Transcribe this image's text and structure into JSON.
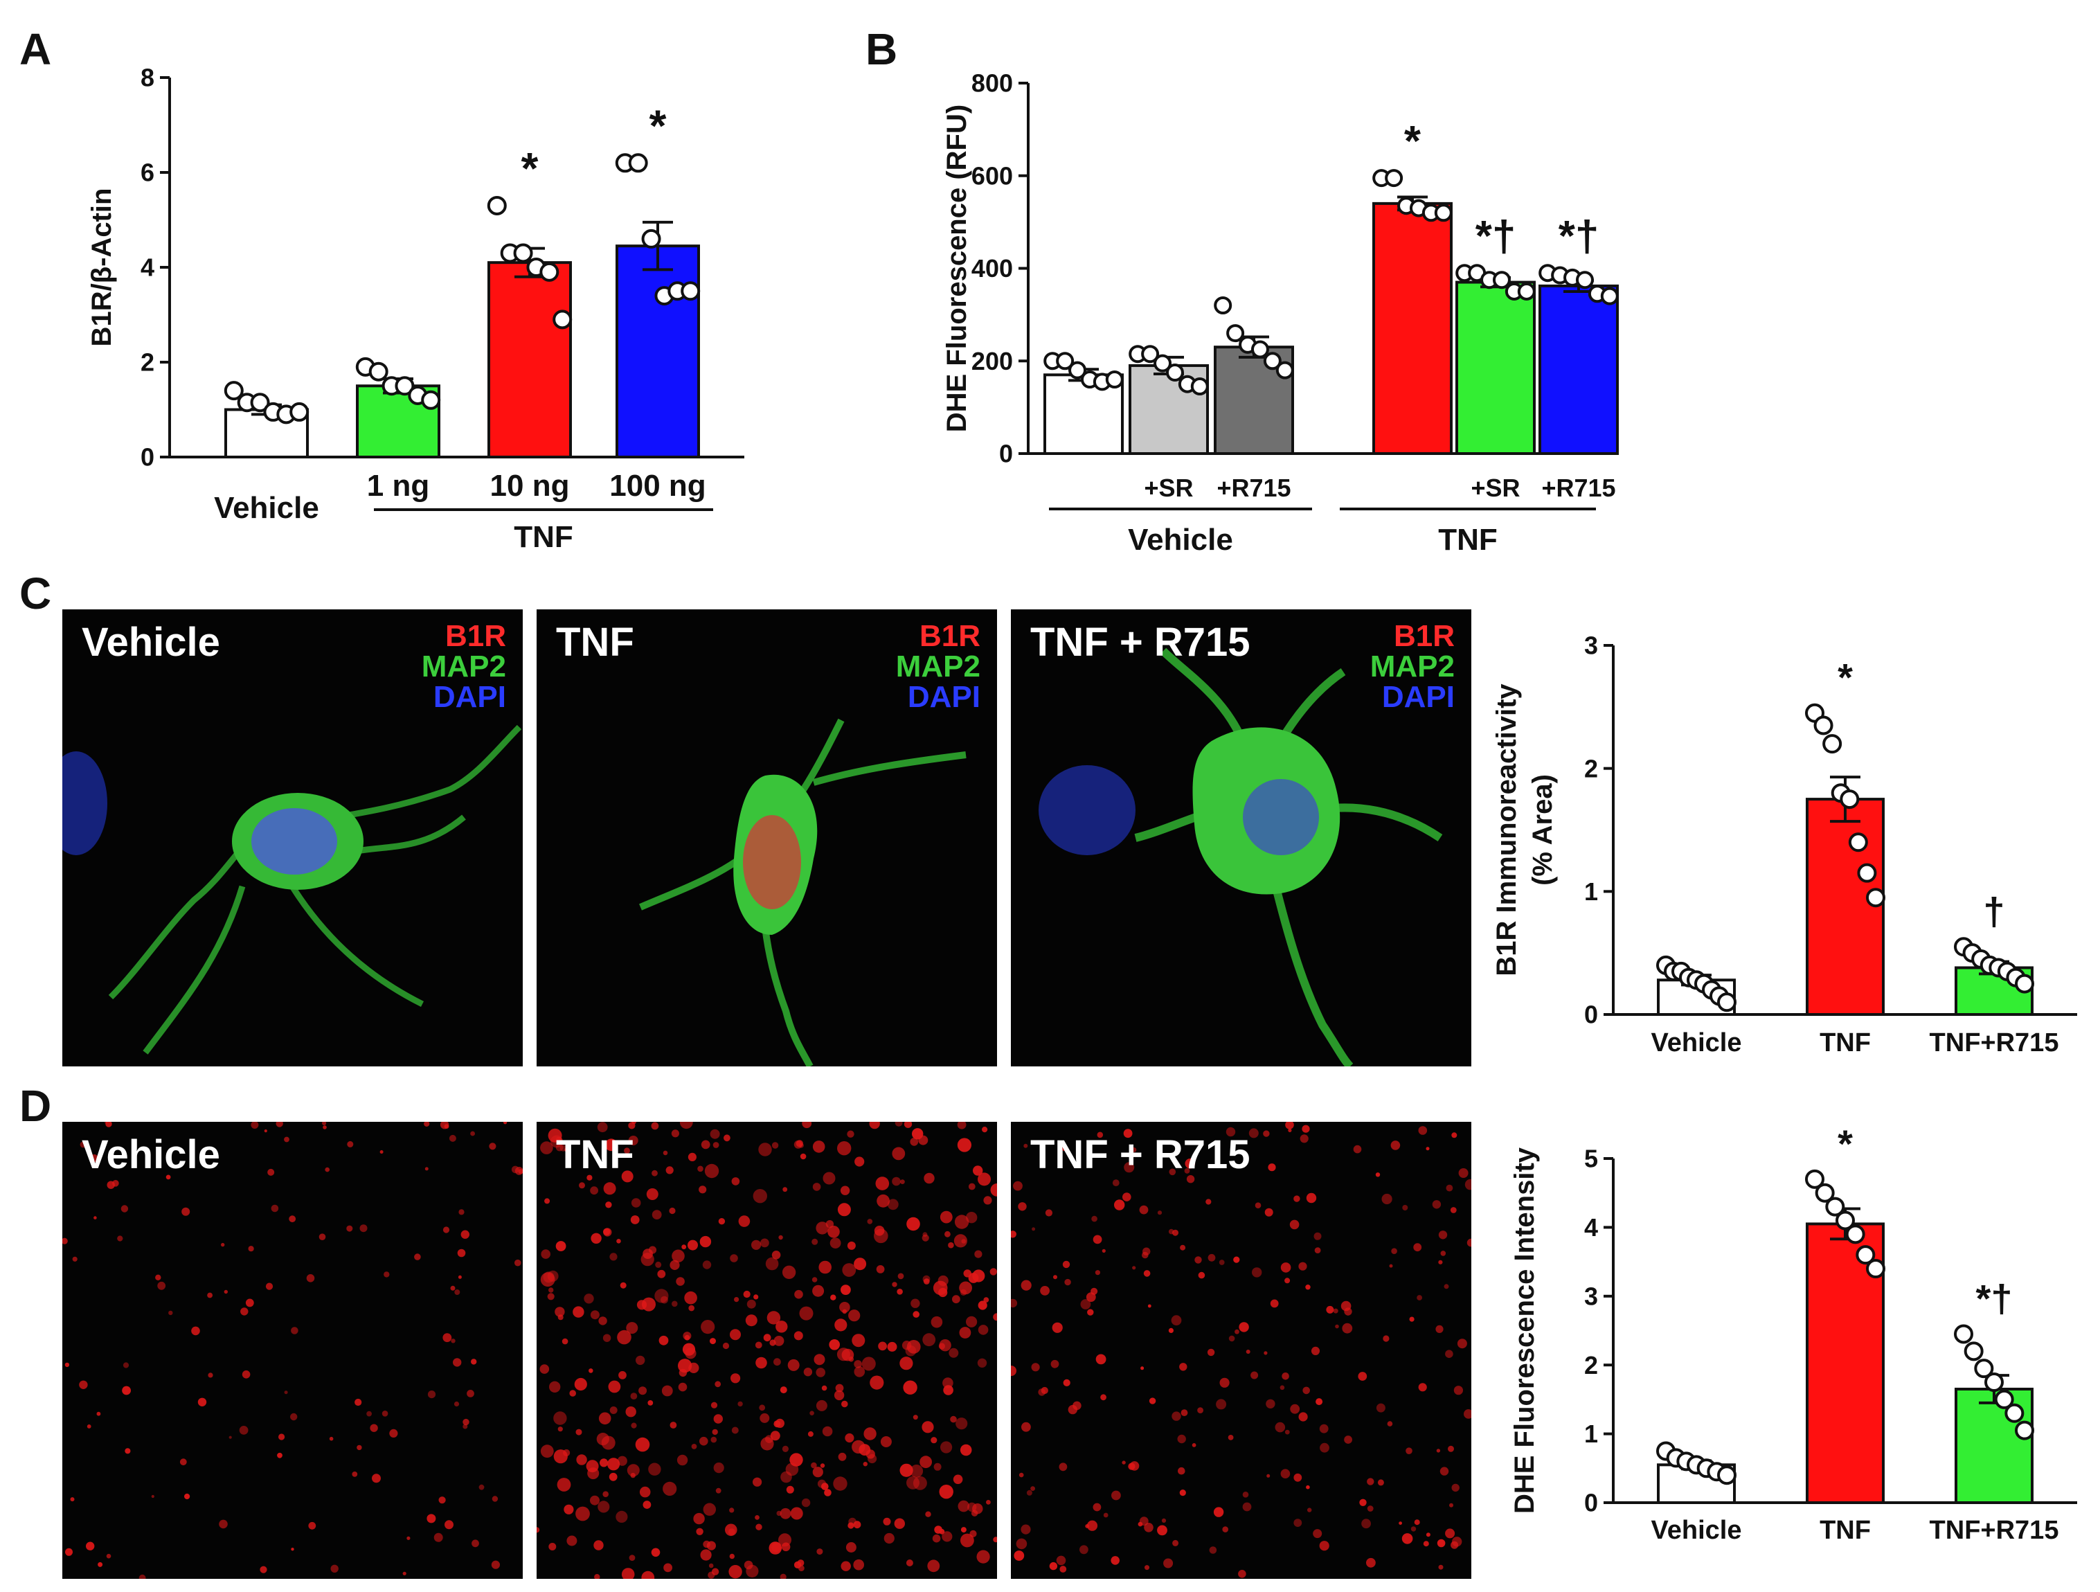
{
  "panels": {
    "A": {
      "letter": "A"
    },
    "B": {
      "letter": "B"
    },
    "C": {
      "letter": "C"
    },
    "D": {
      "letter": "D"
    }
  },
  "stain_labels": {
    "b1r": "B1R",
    "map2": "MAP2",
    "dapi": "DAPI"
  },
  "images": {
    "C": [
      "Vehicle",
      "TNF",
      "TNF + R715"
    ],
    "D": [
      "Vehicle",
      "TNF",
      "TNF + R715"
    ]
  },
  "colors": {
    "white_bar": "#ffffff",
    "green_bar": "#33ee33",
    "red_bar": "#ff1010",
    "blue_bar": "#1010ff",
    "lightgray_bar": "#c8c8c8",
    "darkgray_bar": "#707070",
    "map2_green": "#3ccf3c",
    "b1r_red": "#ff2b2b",
    "dapi_blue": "#2a3cff"
  },
  "chart_data": [
    {
      "panel": "A",
      "type": "bar",
      "ylabel": "B1R/β-Actin",
      "ylim": [
        0,
        8
      ],
      "yticks": [
        0,
        2,
        4,
        6,
        8
      ],
      "categories": [
        "Vehicle",
        "1 ng",
        "10 ng",
        "100 ng"
      ],
      "group_label": "TNF",
      "values": [
        1.0,
        1.5,
        4.1,
        4.45
      ],
      "errors": [
        0.1,
        0.15,
        0.3,
        0.5
      ],
      "colors": [
        "#ffffff",
        "#33ee33",
        "#ff1010",
        "#1010ff"
      ],
      "significance": [
        "",
        "",
        "*",
        "*"
      ],
      "points": [
        [
          1.4,
          1.15,
          1.15,
          0.95,
          0.9,
          0.95
        ],
        [
          1.9,
          1.8,
          1.5,
          1.5,
          1.3,
          1.2
        ],
        [
          5.3,
          4.3,
          4.3,
          4.0,
          3.9,
          2.9
        ],
        [
          6.2,
          6.2,
          4.6,
          3.4,
          3.5,
          3.5
        ]
      ]
    },
    {
      "panel": "B",
      "type": "bar",
      "ylabel": "DHE Fluorescence (RFU)",
      "ylim": [
        0,
        800
      ],
      "yticks": [
        0,
        200,
        400,
        600,
        800
      ],
      "categories": [
        "",
        "+SR",
        "+R715",
        "",
        "+SR",
        "+R715"
      ],
      "group_labels": [
        "Vehicle",
        "TNF"
      ],
      "values": [
        170,
        190,
        230,
        540,
        370,
        362
      ],
      "errors": [
        12,
        18,
        22,
        14,
        10,
        12
      ],
      "colors": [
        "#ffffff",
        "#c8c8c8",
        "#707070",
        "#ff1010",
        "#33ee33",
        "#1010ff"
      ],
      "significance": [
        "",
        "",
        "",
        "*",
        "*†",
        "*†"
      ],
      "points": [
        [
          200,
          200,
          180,
          160,
          155,
          160
        ],
        [
          215,
          215,
          195,
          175,
          150,
          145
        ],
        [
          320,
          260,
          235,
          225,
          200,
          180
        ],
        [
          595,
          595,
          535,
          530,
          520,
          520
        ],
        [
          390,
          390,
          375,
          375,
          350,
          350
        ],
        [
          390,
          385,
          380,
          375,
          345,
          340
        ]
      ]
    },
    {
      "panel": "C",
      "type": "bar",
      "ylabel": "B1R Immunoreactivity\n(% Area)",
      "ylim": [
        0,
        3
      ],
      "yticks": [
        0,
        1,
        2,
        3
      ],
      "categories": [
        "Vehicle",
        "TNF",
        "TNF+R715"
      ],
      "values": [
        0.28,
        1.75,
        0.38
      ],
      "errors": [
        0.04,
        0.18,
        0.05
      ],
      "colors": [
        "#ffffff",
        "#ff1010",
        "#33ee33"
      ],
      "significance": [
        "",
        "*",
        "†"
      ],
      "points": [
        [
          0.4,
          0.35,
          0.35,
          0.3,
          0.28,
          0.25,
          0.2,
          0.15,
          0.1
        ],
        [
          2.45,
          2.35,
          2.2,
          1.8,
          1.75,
          1.4,
          1.15,
          0.95
        ],
        [
          0.55,
          0.5,
          0.45,
          0.4,
          0.38,
          0.35,
          0.3,
          0.25
        ]
      ]
    },
    {
      "panel": "D",
      "type": "bar",
      "ylabel": "DHE Fluorescence Intensity",
      "ylim": [
        0,
        5
      ],
      "yticks": [
        0,
        1,
        2,
        3,
        4,
        5
      ],
      "categories": [
        "Vehicle",
        "TNF",
        "TNF+R715"
      ],
      "values": [
        0.55,
        4.05,
        1.65
      ],
      "errors": [
        0.06,
        0.22,
        0.2
      ],
      "colors": [
        "#ffffff",
        "#ff1010",
        "#33ee33"
      ],
      "significance": [
        "",
        "*",
        "*†"
      ],
      "points": [
        [
          0.75,
          0.65,
          0.6,
          0.55,
          0.5,
          0.45,
          0.4
        ],
        [
          4.7,
          4.5,
          4.3,
          4.1,
          3.9,
          3.6,
          3.4
        ],
        [
          2.45,
          2.2,
          1.95,
          1.75,
          1.5,
          1.3,
          1.05
        ]
      ]
    }
  ]
}
